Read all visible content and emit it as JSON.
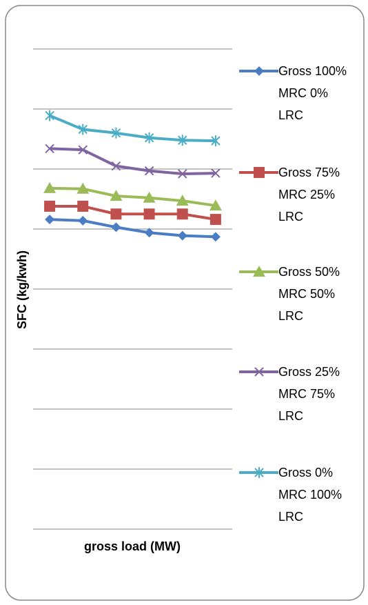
{
  "chart_data": {
    "type": "line",
    "xlabel": "gross load (MW)",
    "ylabel": "SFC (kg/kwh)",
    "categories": [
      null,
      null,
      null,
      null,
      null,
      null
    ],
    "ylim": [
      0,
      8
    ],
    "yticks": [
      0,
      1,
      2,
      3,
      4,
      5,
      6,
      7,
      8
    ],
    "grid": true,
    "legend": "right",
    "series": [
      {
        "name": "Gross 100% MRC 0% LRC",
        "color": "#4a7dc4",
        "marker": "diamond",
        "values": [
          5.16,
          5.14,
          5.03,
          4.94,
          4.89,
          4.87
        ]
      },
      {
        "name": "Gross 75% MRC 25% LRC",
        "color": "#c0504d",
        "marker": "square",
        "values": [
          5.38,
          5.38,
          5.25,
          5.25,
          5.25,
          5.16
        ]
      },
      {
        "name": "Gross 50% MRC 50% LRC",
        "color": "#9bbb59",
        "marker": "triangle",
        "values": [
          5.68,
          5.67,
          5.55,
          5.52,
          5.47,
          5.39
        ]
      },
      {
        "name": "Gross 25% MRC 75% LRC",
        "color": "#8064a2",
        "marker": "x",
        "values": [
          6.34,
          6.32,
          6.05,
          5.97,
          5.92,
          5.93
        ]
      },
      {
        "name": "Gross 0% MRC 100% LRC",
        "color": "#4bacc6",
        "marker": "star",
        "values": [
          6.89,
          6.66,
          6.6,
          6.52,
          6.48,
          6.47
        ]
      }
    ]
  }
}
